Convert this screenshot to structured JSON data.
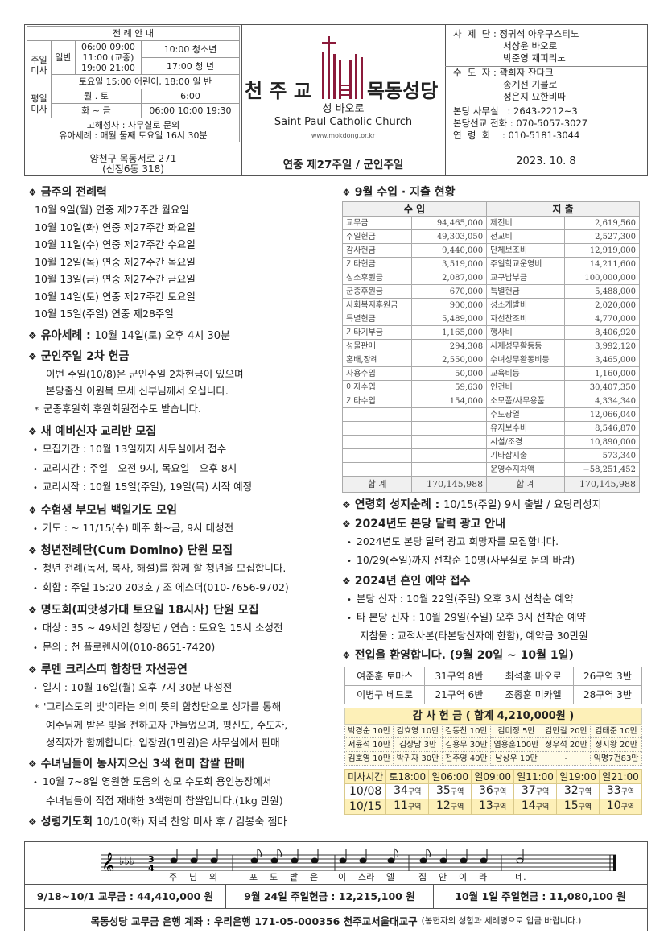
{
  "header": {
    "mass_guide": {
      "title": "전 례 안 내",
      "sunday_label": "주일 미사",
      "general_label": "일반",
      "general_times": [
        "06:00  09:00",
        "11:00 (교중)",
        "19:00  21:00"
      ],
      "youth": "10:00 청소년",
      "young_adult": "17:00 청 년",
      "saturday": "토요일 15:00 어린이, 18:00 일 반",
      "weekday_label": "평일 미사",
      "mon_sat": "월 . 토",
      "mon_sat_time": "6:00",
      "tue_fri": "화 ~ 금",
      "tue_fri_times": "06:00  10:00  19:30",
      "confession": "고해성사 : 사무실로 문의",
      "infant_baptism": "유아세례 : 매월 둘째 토요일 16시 30분"
    },
    "address": [
      "양천구 목동서로 271",
      "(신정6동 318)"
    ],
    "logo": {
      "left": "천 주 교",
      "right": "목동성당",
      "sub": "성 바오로",
      "english": "Saint Paul Catholic Church",
      "url": "www.mokdong.or.kr",
      "color": "#8b1a3a"
    },
    "title": "연중 제27주일 / 군인주일",
    "staff": [
      "사  제  단 : 정귀석 아우구스티노",
      "                 서상윤 바오로",
      "                 박준영 재피리노",
      "수  도  자 : 곽희자 잔다크",
      "                 송계선 기블로",
      "                 정은지 요한비따"
    ],
    "contacts": [
      "본당 사무실   : 2643-2212~3",
      "본당선교 전화 : 070-5057-3027",
      "연  령  회    : 010-5181-3044"
    ],
    "date": "2023.  10.  8"
  },
  "left": [
    {
      "title": "금주의 전례력",
      "lines": [
        {
          "t": "10월   9일(월) 연중 제27주간 월요일",
          "k": "p"
        },
        {
          "t": "10월 10일(화) 연중 제27주간 화요일",
          "k": "p"
        },
        {
          "t": "10월 11일(수) 연중 제27주간 수요일",
          "k": "p"
        },
        {
          "t": "10월 12일(목) 연중 제27주간 목요일",
          "k": "p"
        },
        {
          "t": "10월 13일(금) 연중 제27주간 금요일",
          "k": "p"
        },
        {
          "t": "10월 14일(토) 연중 제27주간 토요일",
          "k": "p"
        },
        {
          "t": "10월 15일(주일) 연중 제28주일",
          "k": "p"
        }
      ]
    },
    {
      "title": "유아세례 :",
      "tail": "10월 14일(토) 오후 4시 30분",
      "lines": []
    },
    {
      "title": "군인주일 2차 헌금",
      "lines": [
        {
          "t": "이번 주일(10/8)은 군인주일 2차헌금이 있으며",
          "k": "i"
        },
        {
          "t": "본당출신 이원복 모세 신부님께서 오십니다.",
          "k": "i"
        },
        {
          "t": "군종후원회 후원회원접수도 받습니다.",
          "k": "s"
        }
      ]
    },
    {
      "title": "새 예비신자 교리반 모집",
      "lines": [
        {
          "t": "모집기간 : 10월 13일까지 사무실에서 접수",
          "k": "b"
        },
        {
          "t": "교리시간 : 주일 - 오전 9시, 목요일 - 오후 8시",
          "k": "b"
        },
        {
          "t": "교리시작 : 10월 15일(주일), 19일(목) 시작 예정",
          "k": "b"
        }
      ]
    },
    {
      "title": "수험생 부모님 백일기도 모임",
      "lines": [
        {
          "t": "기도 :  ~ 11/15(수) 매주 화~금, 9시 대성전",
          "k": "b"
        }
      ]
    },
    {
      "title": "청년전례단(Cum Domino) 단원 모집",
      "lines": [
        {
          "t": "청년 전례(독서, 복사, 해설)를 함께 할 청년을 모집합니다.",
          "k": "b"
        },
        {
          "t": "회합 : 주일 15:20 203호 / 조 에스더(010-7656-9702)",
          "k": "b"
        }
      ]
    },
    {
      "title": "명도회(피앗성가대 토요일 18시사) 단원 모집",
      "lines": [
        {
          "t": "대상 : 35 ~ 49세인 청장년 / 연습 : 토요일 15시 소성전",
          "k": "b"
        },
        {
          "t": "문의 : 천 플로렌시아(010-8651-7420)",
          "k": "b"
        }
      ]
    },
    {
      "title": "루멘 크리스띠 합창단 자선공연",
      "lines": [
        {
          "t": "일시 : 10월 16일(월) 오후 7시 30분 대성전",
          "k": "b"
        },
        {
          "t": "'그리스도의 빛'이라는 의미 뜻의 합창단으로 성가를 통해",
          "k": "s"
        },
        {
          "t": "예수님께 받은 빛을 전하고자 만들었으며, 평신도, 수도자,",
          "k": "i"
        },
        {
          "t": "성직자가 함께합니다. 입장권(1만원)은 사무실에서 판매",
          "k": "i"
        }
      ]
    },
    {
      "title": "수녀님들이 농사지으신 3색 현미 찹쌀 판매",
      "lines": [
        {
          "t": "10월 7~8일 영원한 도움의 성모 수도회 용인농장에서",
          "k": "b"
        },
        {
          "t": "수녀님들이 직접 재배한 3색현미 찹쌀입니다.(1kg 만원)",
          "k": "i"
        }
      ]
    },
    {
      "title": "성령기도회",
      "tail": "10/10(화) 저녁 찬양 미사 후 / 김봉숙 젬마",
      "lines": []
    }
  ],
  "finance": {
    "title": "9월 수입 · 지출 현황",
    "income_header": "수      입",
    "expense_header": "지      출",
    "rows": [
      [
        "교무금",
        "94,465,000",
        "제전비",
        "2,619,560"
      ],
      [
        "주일헌금",
        "49,303,050",
        "전교비",
        "2,527,300"
      ],
      [
        "감사헌금",
        "9,440,000",
        "단체보조비",
        "12,919,000"
      ],
      [
        "기타헌금",
        "3,519,000",
        "주일학교운영비",
        "14,211,600"
      ],
      [
        "성소후원금",
        "2,087,000",
        "교구납부금",
        "100,000,000"
      ],
      [
        "군종후원금",
        "670,000",
        "특별헌금",
        "5,488,000"
      ],
      [
        "사회복지후원금",
        "900,000",
        "성소개발비",
        "2,020,000"
      ],
      [
        "특별헌금",
        "5,489,000",
        "자선찬조비",
        "4,770,000"
      ],
      [
        "기타기부금",
        "1,165,000",
        "행사비",
        "8,406,920"
      ],
      [
        "성물판매",
        "294,308",
        "사제성무활동등",
        "3,992,120"
      ],
      [
        "혼배,장례",
        "2,550,000",
        "수녀성무활동비등",
        "3,465,000"
      ],
      [
        "사용수입",
        "50,000",
        "교육비등",
        "1,160,000"
      ],
      [
        "이자수입",
        "59,630",
        "인건비",
        "30,407,350"
      ],
      [
        "기타수입",
        "154,000",
        "소모품/사무용품",
        "4,334,340"
      ],
      [
        "",
        "",
        "수도광열",
        "12,066,040"
      ],
      [
        "",
        "",
        "유지보수비",
        "8,546,870"
      ],
      [
        "",
        "",
        "시설/조경",
        "10,890,000"
      ],
      [
        "",
        "",
        "기타잡지출",
        "573,340"
      ],
      [
        "",
        "",
        "운영수지차액",
        "−58,251,452"
      ]
    ],
    "total_label": "합      계",
    "income_total": "170,145,988",
    "expense_total": "170,145,988"
  },
  "right": [
    {
      "title": "연령회 성지순례 :",
      "tail": "10/15(주일) 9시 출발 / 요당리성지",
      "lines": []
    },
    {
      "title": "2024년도 본당 달력 광고 안내",
      "lines": [
        {
          "t": "2024년도 본당 달력 광고 희망자를 모집합니다.",
          "k": "b"
        },
        {
          "t": "10/29(주일)까지 선착순 10명(사무실로 문의 바람)",
          "k": "b"
        }
      ]
    },
    {
      "title": "2024년 혼인 예약 접수",
      "lines": [
        {
          "t": "본당 신자 : 10월 22일(주일) 오후 3시 선착순 예약",
          "k": "b"
        },
        {
          "t": "타 본당 신자 : 10월 29일(주일) 오후 3시 선착순 예약",
          "k": "b"
        },
        {
          "t": "지참물 : 교적사본(타본당신자에 한함), 예약금 30만원",
          "k": "i"
        }
      ]
    },
    {
      "title": "전입을 환영합니다. (9월 20일  ~  10월 1일)",
      "lines": []
    }
  ],
  "transfers": [
    [
      "여준훈 토마스",
      "31구역 8반",
      "최석훈 바오로",
      "26구역 3반"
    ],
    [
      "이병구 베드로",
      "21구역 6반",
      "조종훈 미카엘",
      "28구역 3반"
    ]
  ],
  "thanks": {
    "title": "감 사 헌 금 ( 합계 4,210,000원 )",
    "rows": [
      [
        "박경순 10만",
        "김효영 10만",
        "김동찬 10만",
        "김미정  5만",
        "김만길 20만",
        "김태준 10만"
      ],
      [
        "서윤석 10만",
        "김상남  3만",
        "김용무 30만",
        "염용훈100만",
        "정우석 20만",
        "정지왕 20만"
      ],
      [
        "김호영 10만",
        "박귀자 30만",
        "천주영 40만",
        "남상우 10만",
        "-",
        "익명7건83만"
      ]
    ]
  },
  "mass_schedule": {
    "header": [
      "미사시간",
      "토18:00",
      "일06:00",
      "일09:00",
      "일11:00",
      "일19:00",
      "일21:00"
    ],
    "rows": [
      {
        "date": "10/08",
        "zones": [
          "34",
          "35",
          "36",
          "37",
          "32",
          "33"
        ]
      },
      {
        "date": "10/15",
        "zones": [
          "11",
          "12",
          "13",
          "14",
          "15",
          "10"
        ]
      }
    ],
    "unit": "구역"
  },
  "song": {
    "lyrics": [
      "주",
      "님",
      "의",
      "포",
      "도",
      "밭",
      "은",
      "이",
      "스라",
      "엘",
      "집",
      "안",
      "이",
      "라",
      "네."
    ]
  },
  "offerings": [
    "9/18~10/1 교무금 :  44,410,000 원",
    "9월 24일 주일헌금 :  12,215,100 원",
    "10월 1일 주일헌금 :  11,080,100 원"
  ],
  "bank": {
    "main": "목동성당 교무금 은행 계좌 : 우리은행 171-05-000356 천주교서울대교구",
    "note": "(봉헌자의 성함과 세례명으로 입금 바랍니다.)"
  }
}
